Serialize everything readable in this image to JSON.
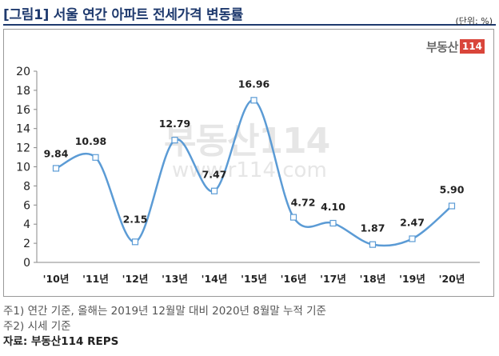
{
  "header": {
    "title": "[그림1] 서울 연간 아파트 전세가격 변동률",
    "unit": "(단위: %)"
  },
  "brand": {
    "logo_text": "부동산",
    "logo_box": "114",
    "watermark_big": "부동산114",
    "watermark_url": "www.r114.com"
  },
  "colors": {
    "line": "#5b9bd5",
    "marker_fill": "#ffffff",
    "title": "#1f3a6e",
    "logo_box": "#d9453a"
  },
  "chart_data": {
    "type": "line",
    "title": "",
    "xlabel": "",
    "ylabel": "",
    "categories": [
      "'10년",
      "'11년",
      "'12년",
      "'13년",
      "'14년",
      "'15년",
      "'16년",
      "'17년",
      "'18년",
      "'19년",
      "'20년"
    ],
    "series": [
      {
        "values": [
          9.84,
          10.98,
          2.15,
          12.79,
          7.47,
          16.96,
          4.72,
          4.1,
          1.87,
          2.47,
          5.9
        ],
        "labels": [
          "9.84",
          "10.98",
          "2.15",
          "12.79",
          "7.47",
          "16.96",
          "4.72",
          "4.10",
          "1.87",
          "2.47",
          "5.90"
        ]
      }
    ],
    "ylim": [
      0,
      20
    ],
    "yticks": [
      "0",
      "2",
      "4",
      "6",
      "8",
      "10",
      "12",
      "14",
      "16",
      "18",
      "20"
    ],
    "grid": false,
    "smooth": true,
    "legend": "none"
  },
  "notes": {
    "note1": "주1) 연간 기준, 올해는 2019년 12월말 대비 2020년 8월말 누적 기준",
    "note2": "주2) 시세 기준",
    "source": "자료: 부동산114 REPS"
  }
}
